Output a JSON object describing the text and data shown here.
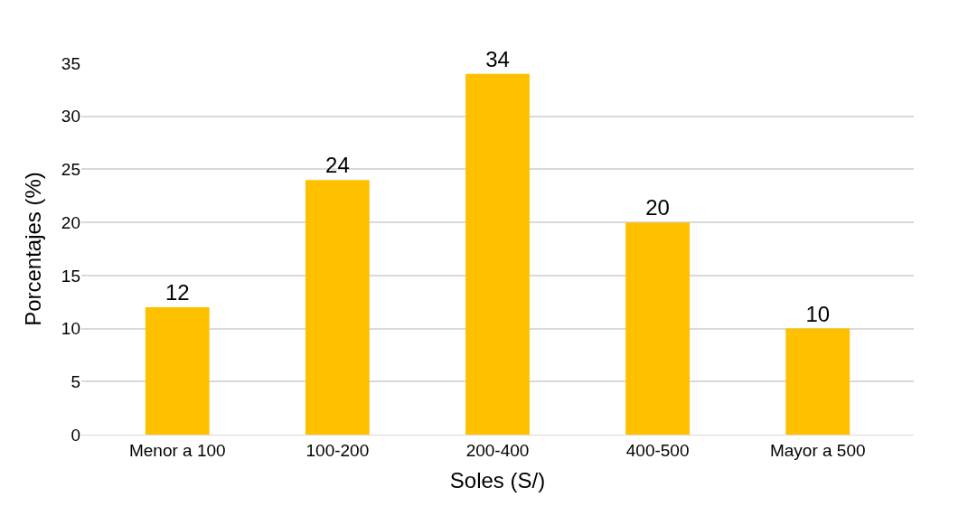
{
  "chart_data": {
    "type": "bar",
    "xlabel": "Soles (S/)",
    "ylabel": "Porcentajes (%)",
    "categories": [
      "Menor a 100",
      "100-200",
      "200-400",
      "400-500",
      "Mayor a 500"
    ],
    "values": [
      12,
      24,
      34,
      20,
      10
    ],
    "color": "#ffc000",
    "data_labels": true,
    "ylim": [
      0,
      35
    ],
    "yticks": [
      0,
      5,
      10,
      15,
      20,
      25,
      30,
      35
    ],
    "grid": "y",
    "legend": false
  }
}
